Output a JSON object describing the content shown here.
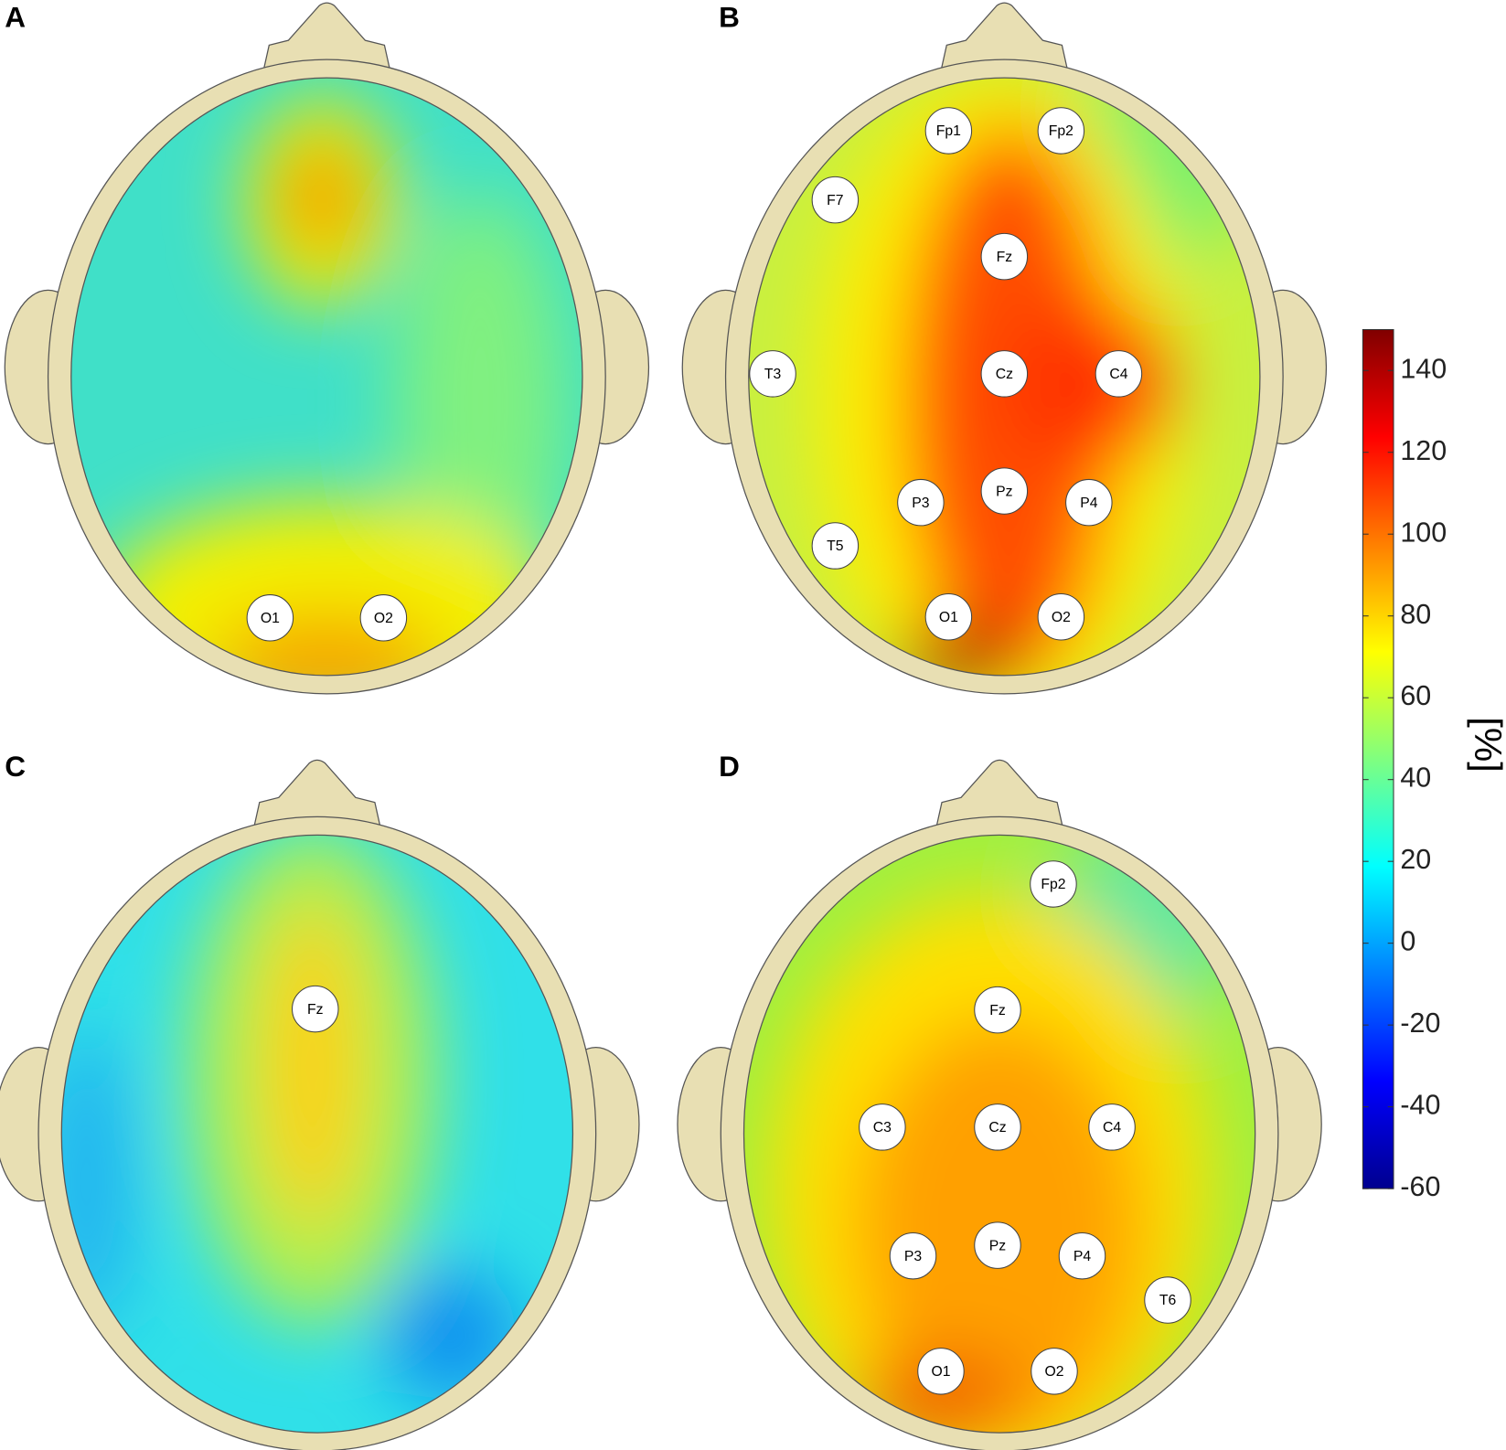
{
  "panels": [
    {
      "label": "A",
      "electrodes": [
        "O1",
        "O2"
      ]
    },
    {
      "label": "B",
      "electrodes": [
        "Fp1",
        "Fp2",
        "F7",
        "Fz",
        "T3",
        "Cz",
        "C4",
        "P3",
        "Pz",
        "P4",
        "T5",
        "O1",
        "O2"
      ]
    },
    {
      "label": "C",
      "electrodes": [
        "Fz"
      ]
    },
    {
      "label": "D",
      "electrodes": [
        "Fp2",
        "Fz",
        "C3",
        "Cz",
        "C4",
        "P3",
        "Pz",
        "P4",
        "T6",
        "O1",
        "O2"
      ]
    }
  ],
  "colorbar": {
    "label": "[%]",
    "lim": [
      -60,
      150
    ],
    "ticks": [
      -60,
      -40,
      -20,
      0,
      20,
      40,
      60,
      80,
      100,
      120,
      140
    ]
  }
}
